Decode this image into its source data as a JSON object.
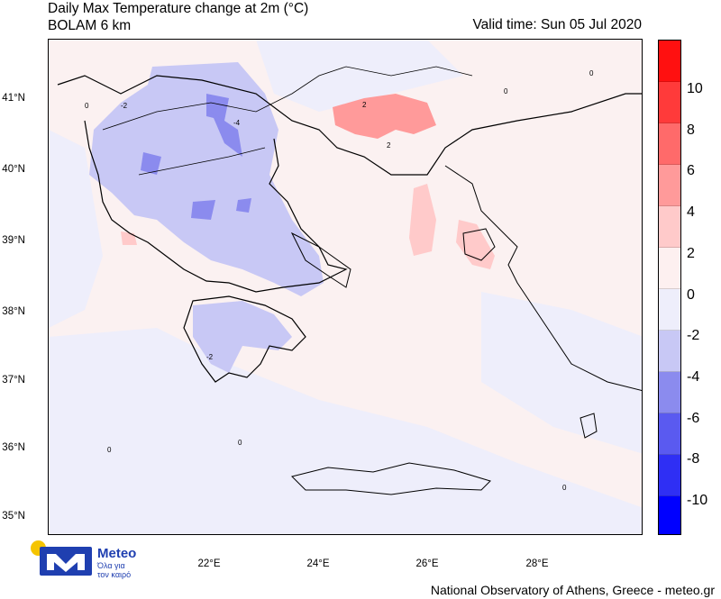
{
  "header": {
    "title_line1": "Daily Max Temperature change at 2m (°C)",
    "title_line2": "BOLAM 6 km",
    "valid_time": "Valid time: Sun 05 Jul 2020"
  },
  "map": {
    "lat_labels": [
      "41°N",
      "40°N",
      "39°N",
      "38°N",
      "37°N",
      "36°N",
      "35°N"
    ],
    "lon_labels": [
      "22°E",
      "24°E",
      "26°E",
      "28°E"
    ],
    "contour_labels": [
      "0",
      "-2",
      "-4",
      "2"
    ]
  },
  "colorbar": {
    "levels": [
      "10",
      "8",
      "6",
      "4",
      "2",
      "0",
      "-2",
      "-4",
      "-6",
      "-8",
      "-10"
    ],
    "colors": [
      "#ff1010",
      "#ff3a3a",
      "#ff6a6a",
      "#ff9a9a",
      "#ffcaca",
      "#fdf0f0",
      "#eeeefb",
      "#c8c8f5",
      "#8b8bee",
      "#5a5af0",
      "#2f2ff4",
      "#0000ff"
    ]
  },
  "logo": {
    "name": "Meteo",
    "tagline_1": "Όλα για",
    "tagline_2": "τον καιρό"
  },
  "footer": {
    "credit": "National Observatory of Athens, Greece - meteo.gr"
  }
}
